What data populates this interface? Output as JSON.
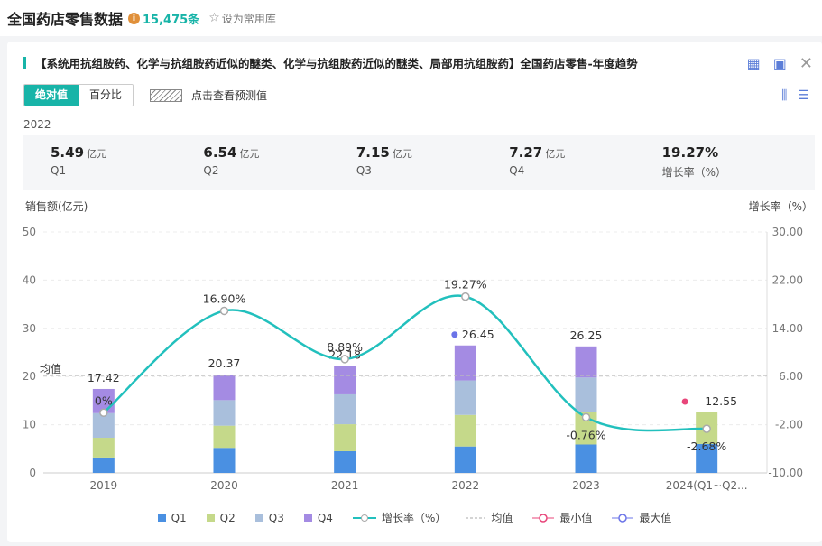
{
  "header": {
    "title": "全国药店零售数据",
    "count": "15,475条",
    "favorite_label": "设为常用库"
  },
  "card": {
    "title": "【系统用抗组胺药、化学与抗组胺药近似的醚类、化学与抗组胺药近似的醚类、局部用抗组胺药】全国药店零售-年度趋势",
    "toggle_absolute": "绝对值",
    "toggle_percent": "百分比",
    "forecast_label": "点击查看预测值",
    "year_label": "2022"
  },
  "stats": [
    {
      "value": "5.49",
      "unit": "亿元",
      "label": "Q1"
    },
    {
      "value": "6.54",
      "unit": "亿元",
      "label": "Q2"
    },
    {
      "value": "7.15",
      "unit": "亿元",
      "label": "Q3"
    },
    {
      "value": "7.27",
      "unit": "亿元",
      "label": "Q4"
    },
    {
      "value": "19.27%",
      "unit": "",
      "label": "增长率（%）"
    }
  ],
  "chart_data": {
    "type": "bar",
    "stacked": true,
    "left_axis_label": "销售额(亿元)",
    "right_axis_label": "增长率（%）",
    "ylim_left": [
      0,
      50
    ],
    "left_ticks": [
      "0",
      "10",
      "20",
      "30",
      "40",
      "50"
    ],
    "ylim_right": [
      -10,
      30
    ],
    "right_ticks": [
      "-10.00",
      "-2.00",
      "6.00",
      "14.00",
      "22.00",
      "30.00"
    ],
    "categories": [
      "2019",
      "2020",
      "2021",
      "2022",
      "2023",
      "2024(Q1~Q2..."
    ],
    "series": [
      {
        "name": "Q1",
        "color": "#4a90e2",
        "values": [
          3.2,
          5.2,
          4.5,
          5.49,
          5.9,
          6.0
        ]
      },
      {
        "name": "Q2",
        "color": "#c5d98a",
        "values": [
          4.1,
          4.6,
          5.6,
          6.54,
          6.7,
          6.55
        ]
      },
      {
        "name": "Q3",
        "color": "#a9bfdc",
        "values": [
          5.1,
          5.3,
          6.2,
          7.15,
          7.2,
          0
        ]
      },
      {
        "name": "Q4",
        "color": "#a48be3",
        "values": [
          5.02,
          5.27,
          5.88,
          7.27,
          6.45,
          0
        ]
      }
    ],
    "totals": [
      "17.42",
      "20.37",
      "22.18",
      "26.45",
      "26.25",
      "12.55"
    ],
    "growth": {
      "name": "增长率（%）",
      "color": "#22c0bd",
      "values": [
        0,
        16.9,
        8.89,
        19.27,
        -0.76,
        -2.68
      ],
      "labels": [
        "0%",
        "16.90%",
        "8.89%",
        "19.27%",
        "-0.76%",
        "-2.68%"
      ]
    },
    "average": {
      "label": "均值",
      "value": 20.2
    },
    "min_index": 5,
    "max_index": 3,
    "min_color": "#e8457a",
    "max_color": "#6b74e8",
    "legend": [
      "Q1",
      "Q2",
      "Q3",
      "Q4",
      "增长率（%）",
      "均值",
      "最小值",
      "最大值"
    ]
  }
}
